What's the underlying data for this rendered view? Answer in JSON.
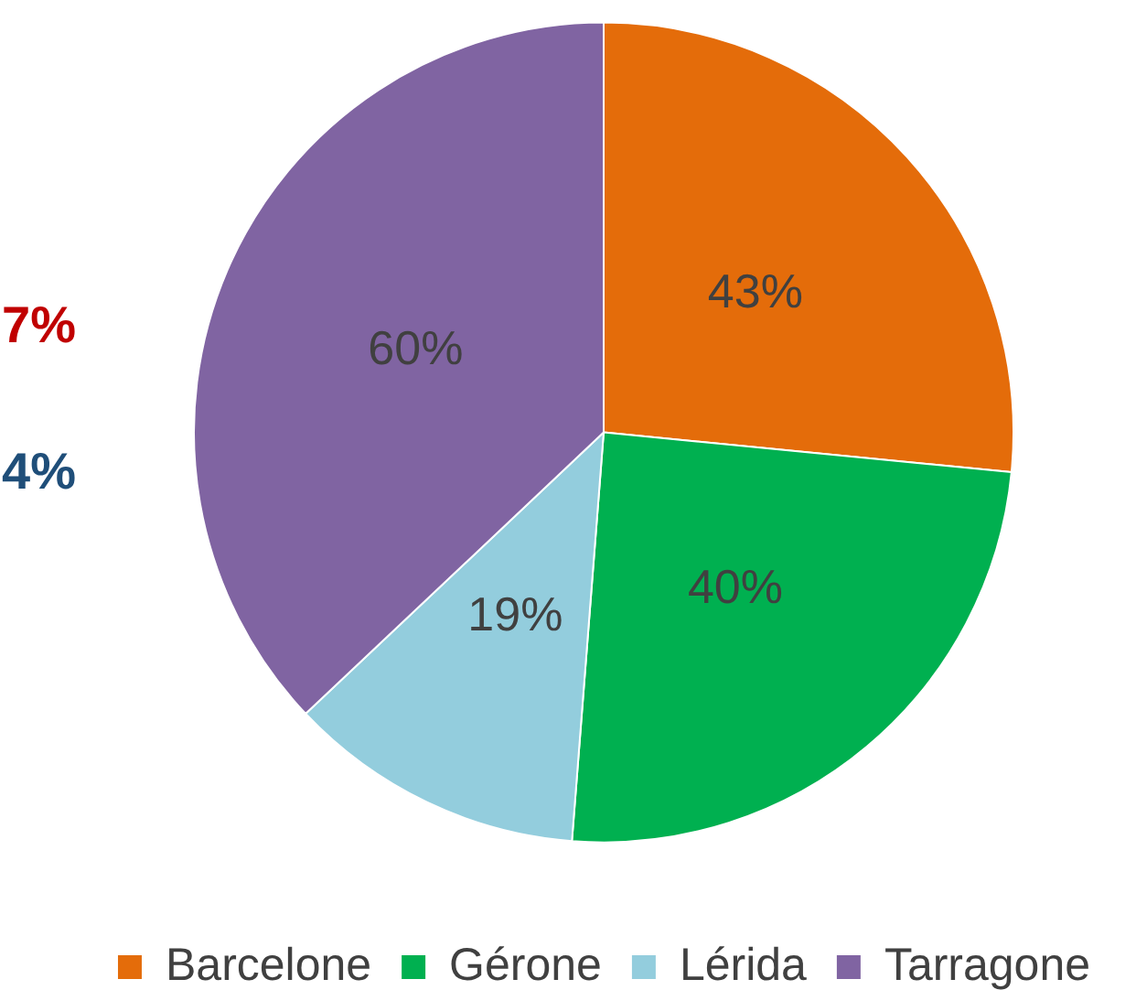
{
  "chart_data": {
    "type": "pie",
    "categories": [
      "Barcelone",
      "Gérone",
      "Lérida",
      "Tarragone"
    ],
    "values": [
      43,
      40,
      19,
      60
    ],
    "colors": [
      "#e46c0a",
      "#00b050",
      "#93cddd",
      "#8064a2"
    ],
    "value_labels": [
      "43%",
      "40%",
      "19%",
      "60%"
    ],
    "legend": "bottom",
    "annotations": [
      "7%",
      "4%"
    ]
  }
}
